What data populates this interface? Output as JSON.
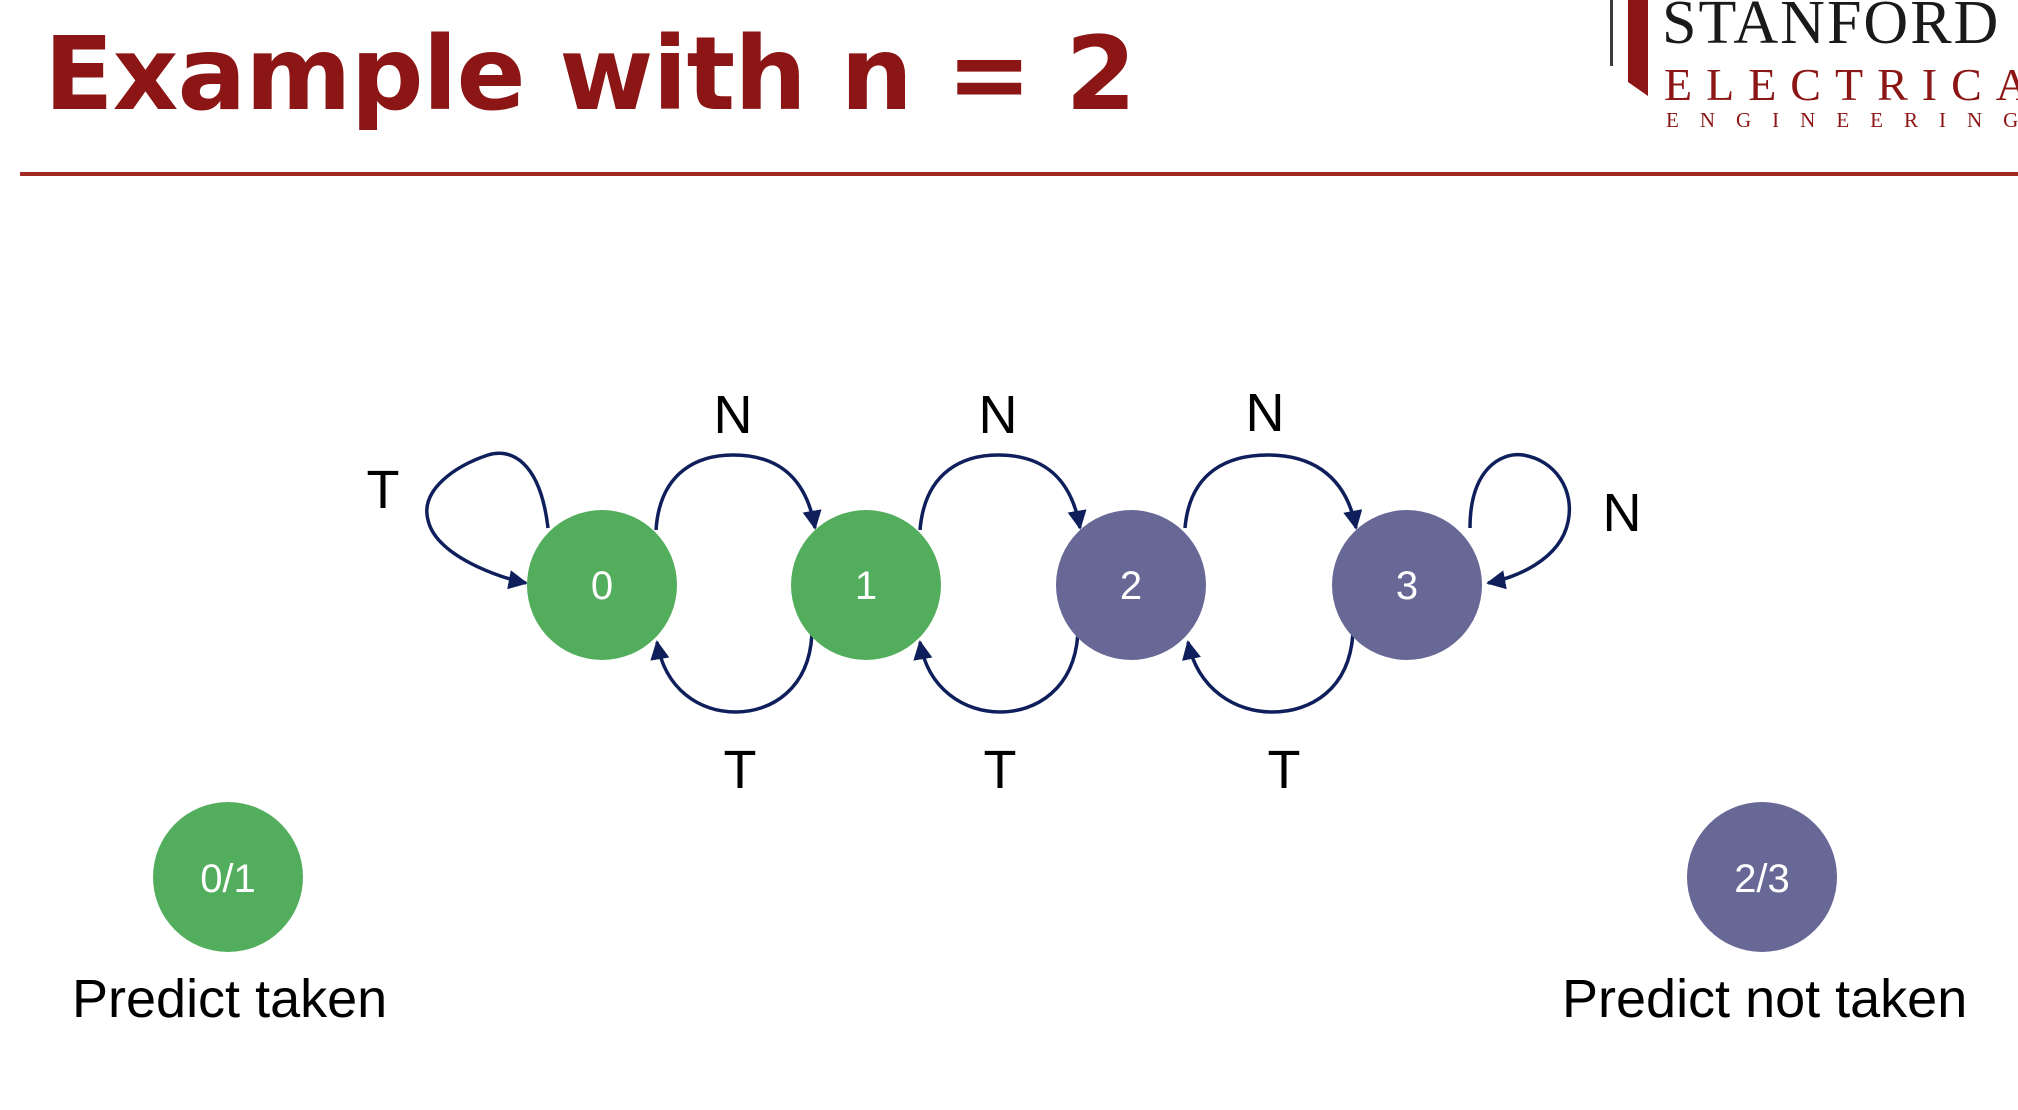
{
  "slide": {
    "title": "Example with n = 2"
  },
  "logo": {
    "line1": "STANFORD",
    "line2": "ELECTRICAL",
    "line3": "ENGINEERING"
  },
  "colors": {
    "title": "#8c1515",
    "predict_taken_state": "#52ad5c",
    "predict_not_taken_state": "#686896",
    "arrow": "#0f1f5c"
  },
  "states": [
    {
      "label": "0",
      "group": "predict_taken"
    },
    {
      "label": "1",
      "group": "predict_taken"
    },
    {
      "label": "2",
      "group": "predict_not_taken"
    },
    {
      "label": "3",
      "group": "predict_not_taken"
    }
  ],
  "transitions": [
    {
      "from": "0",
      "to": "0",
      "label": "T"
    },
    {
      "from": "0",
      "to": "1",
      "label": "N"
    },
    {
      "from": "1",
      "to": "2",
      "label": "N"
    },
    {
      "from": "2",
      "to": "3",
      "label": "N"
    },
    {
      "from": "3",
      "to": "3",
      "label": "N"
    },
    {
      "from": "1",
      "to": "0",
      "label": "T"
    },
    {
      "from": "2",
      "to": "1",
      "label": "T"
    },
    {
      "from": "3",
      "to": "2",
      "label": "T"
    }
  ],
  "legend": [
    {
      "state_label": "0/1",
      "caption": "Predict taken",
      "group": "predict_taken"
    },
    {
      "state_label": "2/3",
      "caption": "Predict not taken",
      "group": "predict_not_taken"
    }
  ]
}
